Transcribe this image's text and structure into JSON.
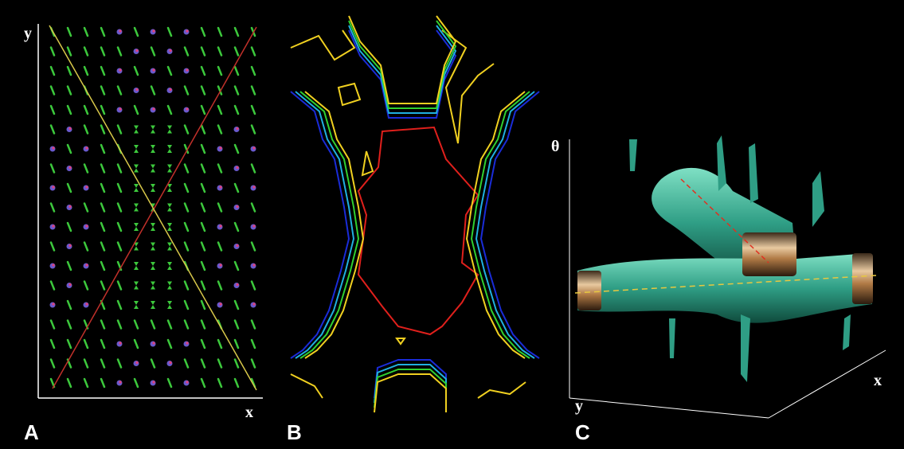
{
  "panels": [
    {
      "label": "A",
      "axis_labels": {
        "x": "x",
        "y": "y"
      }
    },
    {
      "label": "B"
    },
    {
      "label": "C",
      "axis_labels": {
        "theta": "θ",
        "y": "y",
        "x": "x"
      }
    }
  ]
}
